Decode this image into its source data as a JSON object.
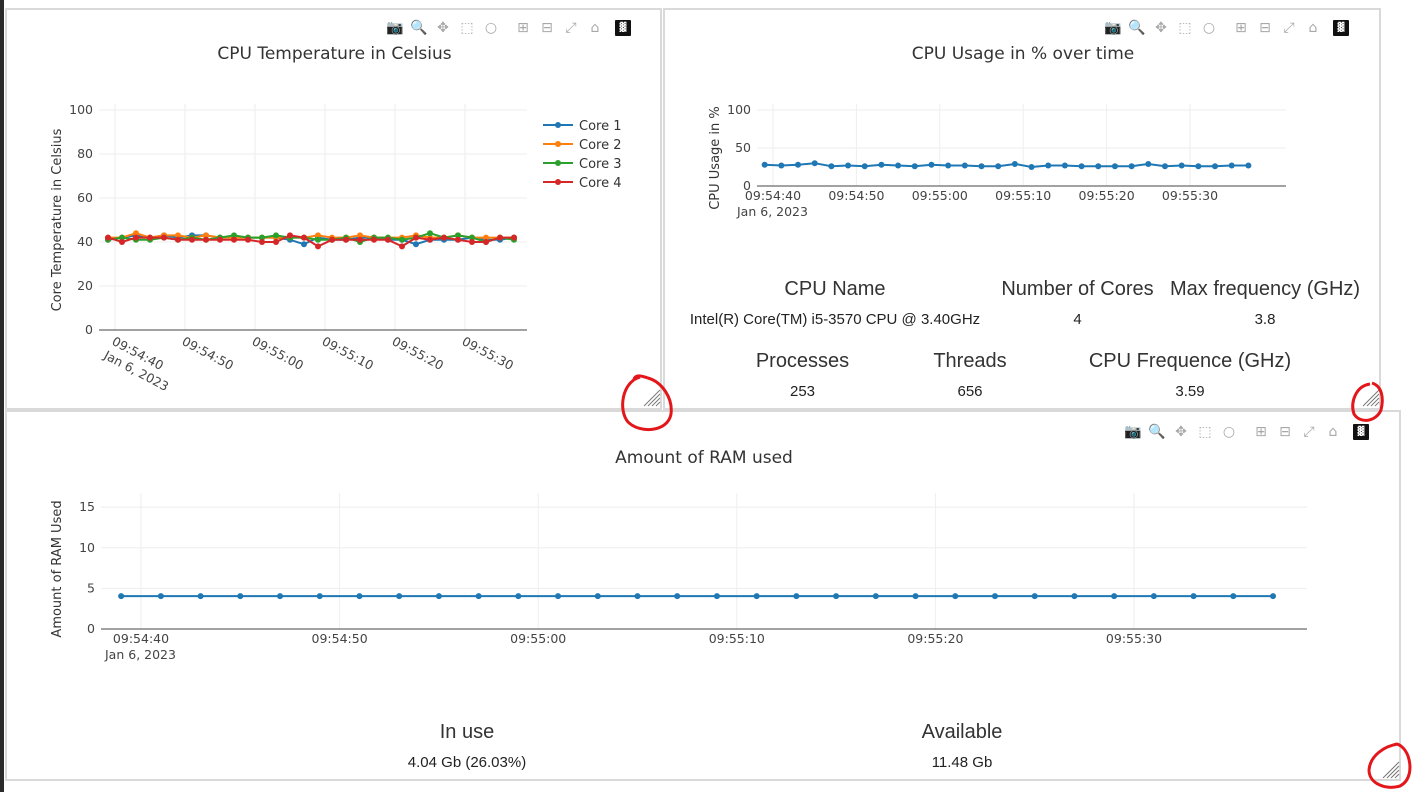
{
  "toolbar": {
    "icons": [
      "camera-icon",
      "zoom-icon",
      "pan-icon",
      "box-select-icon",
      "lasso-icon",
      "zoom-in-icon",
      "zoom-out-icon",
      "autoscale-icon",
      "reset-axes-icon",
      "plotly-logo-icon"
    ]
  },
  "colors": {
    "core1": "#1f77b4",
    "core2": "#ff7f0e",
    "core3": "#2ca02c",
    "core4": "#d62728",
    "annotation": "#e3171b"
  },
  "temp_chart": {
    "title": "CPU Temperature in Celsius",
    "ylabel": "Core Temperature in Celsius",
    "yticks": [
      "100",
      "80",
      "60",
      "40",
      "20",
      "0"
    ],
    "xticks": [
      "09:54:40",
      "09:54:50",
      "09:55:00",
      "09:55:10",
      "09:55:20",
      "09:55:30"
    ],
    "xdate": "Jan 6, 2023",
    "legend": [
      "Core 1",
      "Core 2",
      "Core 3",
      "Core 4"
    ]
  },
  "cpu_chart": {
    "title": "CPU Usage in % over time",
    "ylabel": "CPU Usage in %",
    "yticks": [
      "100",
      "50",
      "0"
    ],
    "xticks": [
      "09:54:40",
      "09:54:50",
      "09:55:00",
      "09:55:10",
      "09:55:20",
      "09:55:30"
    ],
    "xdate": "Jan 6, 2023"
  },
  "cpu_info": {
    "name_label": "CPU Name",
    "name_value": "Intel(R) Core(TM) i5-3570 CPU @ 3.40GHz",
    "cores_label": "Number of Cores",
    "cores_value": "4",
    "maxfreq_label": "Max frequency (GHz)",
    "maxfreq_value": "3.8",
    "proc_label": "Processes",
    "proc_value": "253",
    "threads_label": "Threads",
    "threads_value": "656",
    "freq_label": "CPU Frequence (GHz)",
    "freq_value": "3.59"
  },
  "ram_chart": {
    "title": "Amount of RAM used",
    "ylabel": "Amount of RAM Used",
    "yticks": [
      "15",
      "10",
      "5",
      "0"
    ],
    "xticks": [
      "09:54:40",
      "09:54:50",
      "09:55:00",
      "09:55:10",
      "09:55:20",
      "09:55:30"
    ],
    "xdate": "Jan 6, 2023"
  },
  "ram_info": {
    "inuse_label": "In use",
    "inuse_value": "4.04 Gb (26.03%)",
    "avail_label": "Available",
    "avail_value": "11.48 Gb"
  },
  "chart_data": [
    {
      "type": "line",
      "title": "CPU Temperature in Celsius",
      "ylabel": "Core Temperature in Celsius",
      "ylim": [
        0,
        100
      ],
      "x": [
        "09:54:39",
        "09:54:41",
        "09:54:43",
        "09:54:45",
        "09:54:47",
        "09:54:49",
        "09:54:51",
        "09:54:53",
        "09:54:55",
        "09:54:57",
        "09:54:59",
        "09:55:01",
        "09:55:03",
        "09:55:05",
        "09:55:07",
        "09:55:09",
        "09:55:11",
        "09:55:13",
        "09:55:15",
        "09:55:17",
        "09:55:19",
        "09:55:21",
        "09:55:23",
        "09:55:25",
        "09:55:27",
        "09:55:29",
        "09:55:31",
        "09:55:33",
        "09:55:35",
        "09:55:37"
      ],
      "series": [
        {
          "name": "Core 1",
          "values": [
            41,
            42,
            43,
            42,
            43,
            42,
            43,
            43,
            42,
            42,
            42,
            42,
            42,
            41,
            39,
            42,
            41,
            41,
            42,
            42,
            41,
            41,
            39,
            41,
            41,
            41,
            42,
            41,
            41,
            42
          ]
        },
        {
          "name": "Core 2",
          "values": [
            42,
            42,
            44,
            42,
            43,
            43,
            42,
            43,
            42,
            42,
            42,
            42,
            42,
            42,
            42,
            43,
            42,
            42,
            43,
            42,
            42,
            42,
            43,
            42,
            42,
            43,
            42,
            42,
            42,
            42
          ]
        },
        {
          "name": "Core 3",
          "values": [
            41,
            42,
            41,
            41,
            42,
            41,
            42,
            41,
            42,
            43,
            42,
            42,
            43,
            42,
            42,
            41,
            41,
            42,
            40,
            42,
            42,
            41,
            42,
            44,
            42,
            43,
            42,
            40,
            42,
            41
          ]
        },
        {
          "name": "Core 4",
          "values": [
            42,
            40,
            42,
            42,
            42,
            41,
            41,
            41,
            41,
            41,
            41,
            40,
            40,
            43,
            42,
            38,
            41,
            41,
            41,
            41,
            41,
            38,
            42,
            41,
            42,
            41,
            40,
            40,
            42,
            42
          ]
        }
      ]
    },
    {
      "type": "line",
      "title": "CPU Usage in % over time",
      "ylabel": "CPU Usage in %",
      "ylim": [
        0,
        100
      ],
      "x": [
        "09:54:39",
        "09:54:41",
        "09:54:43",
        "09:54:45",
        "09:54:47",
        "09:54:49",
        "09:54:51",
        "09:54:53",
        "09:54:55",
        "09:54:57",
        "09:54:59",
        "09:55:01",
        "09:55:03",
        "09:55:05",
        "09:55:07",
        "09:55:09",
        "09:55:11",
        "09:55:13",
        "09:55:15",
        "09:55:17",
        "09:55:19",
        "09:55:21",
        "09:55:23",
        "09:55:25",
        "09:55:27",
        "09:55:29",
        "09:55:31",
        "09:55:33",
        "09:55:35",
        "09:55:37"
      ],
      "series": [
        {
          "name": "",
          "values": [
            28,
            27,
            28,
            30,
            26,
            27,
            26,
            28,
            27,
            26,
            28,
            27,
            27,
            26,
            26,
            29,
            25,
            27,
            27,
            26,
            26,
            26,
            26,
            29,
            26,
            27,
            26,
            26,
            27,
            27
          ]
        }
      ]
    },
    {
      "type": "line",
      "title": "Amount of RAM used",
      "ylabel": "Amount of RAM Used",
      "ylim": [
        0,
        16
      ],
      "x": [
        "09:54:39",
        "09:54:41",
        "09:54:43",
        "09:54:45",
        "09:54:47",
        "09:54:49",
        "09:54:51",
        "09:54:53",
        "09:54:55",
        "09:54:57",
        "09:54:59",
        "09:55:01",
        "09:55:03",
        "09:55:05",
        "09:55:07",
        "09:55:09",
        "09:55:11",
        "09:55:13",
        "09:55:15",
        "09:55:17",
        "09:55:19",
        "09:55:21",
        "09:55:23",
        "09:55:25",
        "09:55:27",
        "09:55:29",
        "09:55:31",
        "09:55:33",
        "09:55:35",
        "09:55:37"
      ],
      "series": [
        {
          "name": "",
          "values": [
            4.04,
            4.04,
            4.04,
            4.04,
            4.04,
            4.04,
            4.04,
            4.04,
            4.04,
            4.04,
            4.04,
            4.04,
            4.04,
            4.04,
            4.04,
            4.04,
            4.04,
            4.04,
            4.04,
            4.04,
            4.04,
            4.04,
            4.04,
            4.04,
            4.04,
            4.04,
            4.04,
            4.04,
            4.04,
            4.04
          ]
        }
      ]
    }
  ]
}
